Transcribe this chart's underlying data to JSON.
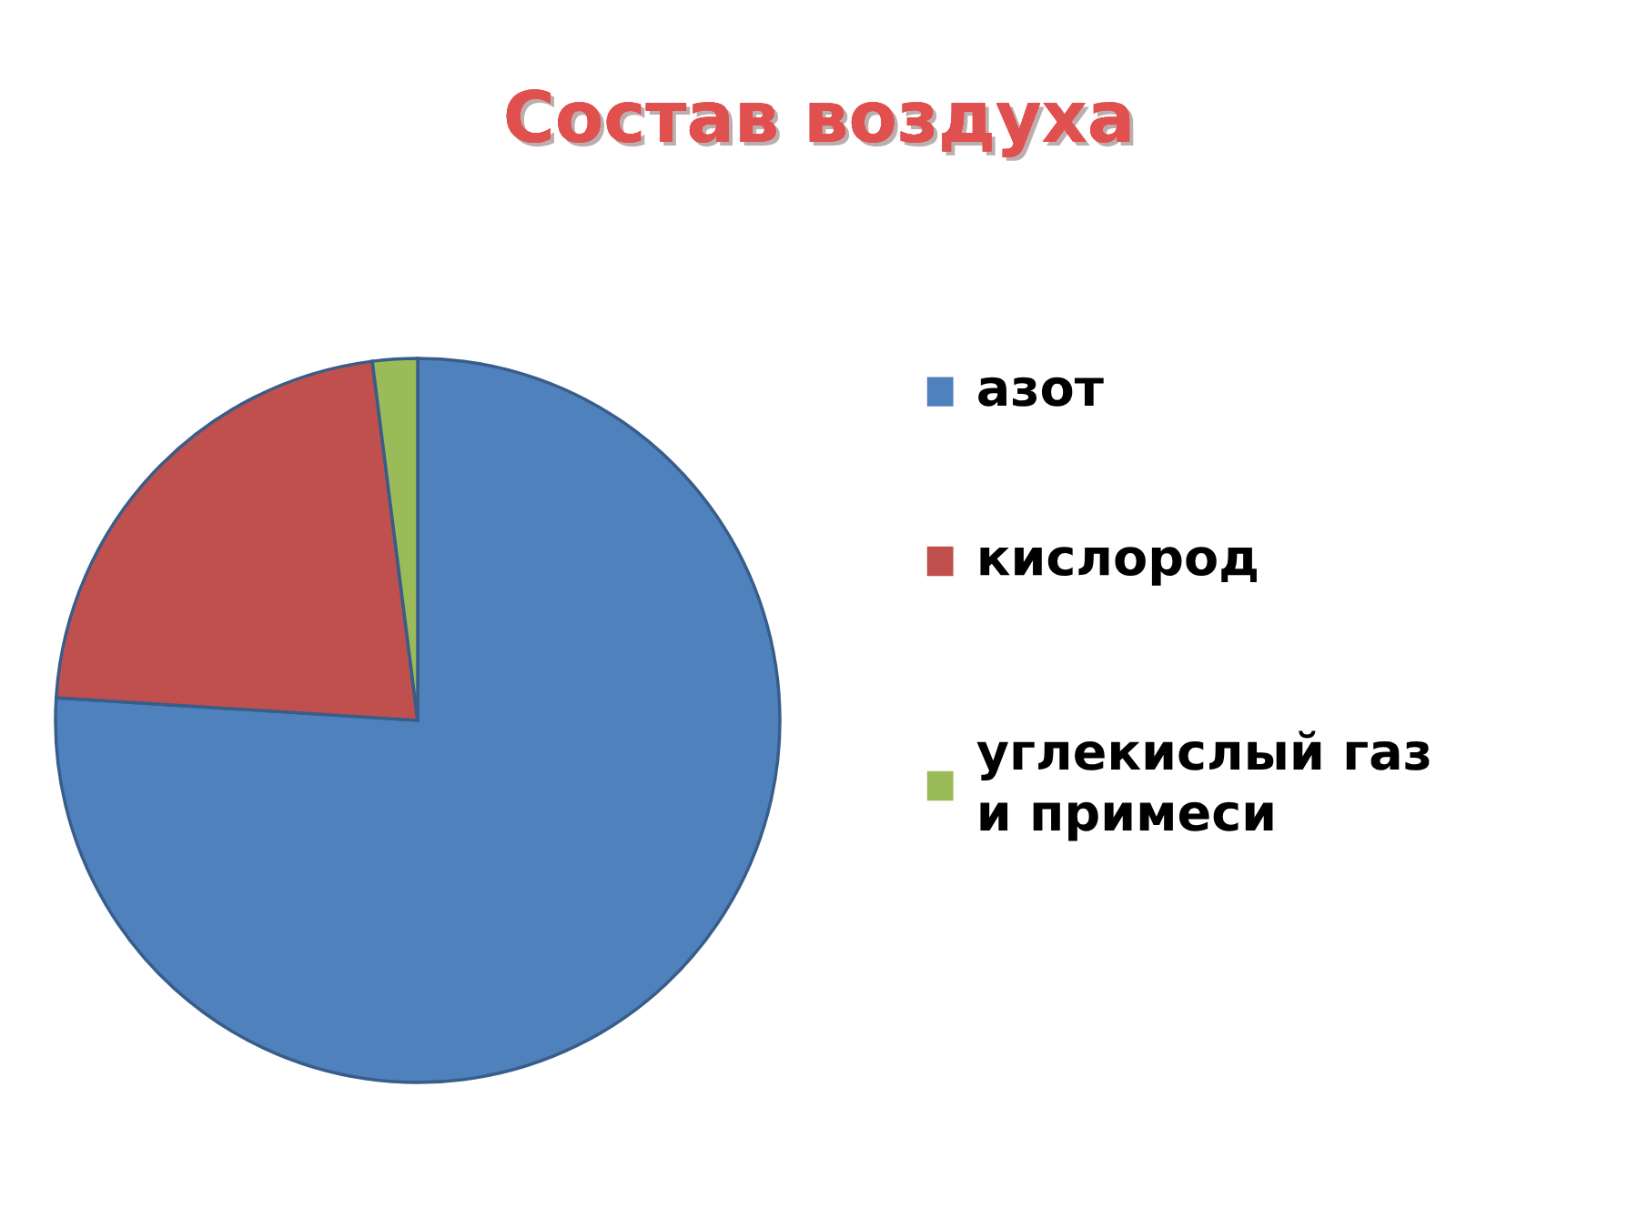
{
  "chart_data": {
    "type": "pie",
    "title": "Состав воздуха",
    "categories": [
      "азот",
      "кислород",
      "углекислый газ\nи примеси"
    ],
    "values": [
      76,
      22,
      2
    ],
    "colors": [
      "#4f81bd",
      "#c0504d",
      "#9bbb59"
    ],
    "legend": "right"
  }
}
